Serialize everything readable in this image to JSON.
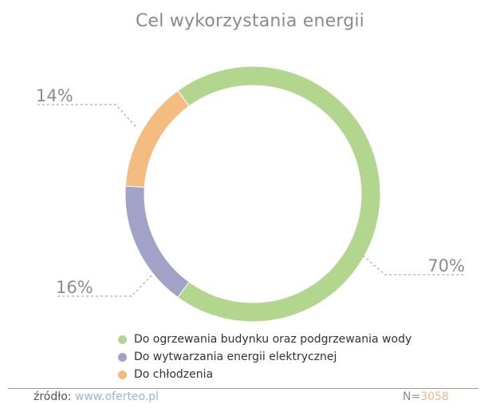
{
  "chart_data": {
    "type": "pie",
    "donut": true,
    "title": "Cel wykorzystania energii",
    "slices": [
      {
        "label": "Do ogrzewania budynku oraz podgrzewania wody",
        "value": 70,
        "display": "70%",
        "color": "#b2d68e"
      },
      {
        "label": "Do wytwarzania energii elektrycznej",
        "value": 16,
        "display": "16%",
        "color": "#a2a2c8"
      },
      {
        "label": "Do chłodzenia",
        "value": 14,
        "display": "14%",
        "color": "#f4bc80"
      }
    ],
    "legend_position": "bottom"
  },
  "footer": {
    "source_label": "źródło:",
    "source_link": "www.oferteo.pl",
    "n_prefix": "N=",
    "n_value": "3058"
  }
}
